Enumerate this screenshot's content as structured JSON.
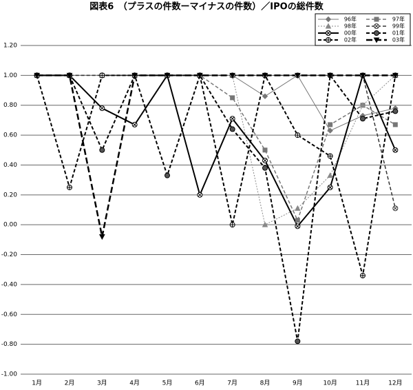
{
  "chart_data": {
    "type": "line",
    "title": "図表6　（プラスの件数ーマイナスの件数）／IPOの総件数",
    "categories": [
      "1月",
      "2月",
      "3月",
      "4月",
      "5月",
      "6月",
      "7月",
      "8月",
      "9月",
      "10月",
      "11月",
      "12月"
    ],
    "series": [
      {
        "name": "96年",
        "color": "#777777",
        "width": 1,
        "dash": "solid",
        "marker": "diamond",
        "values": [
          1,
          1,
          1,
          1,
          1,
          1,
          1,
          0.86,
          1,
          0.63,
          0.73,
          0.78
        ]
      },
      {
        "name": "97年",
        "color": "#777777",
        "width": 1.5,
        "dash": "dashed",
        "marker": "square",
        "values": [
          1,
          1,
          1,
          1,
          1,
          1,
          0.85,
          0.5,
          0.03,
          0.67,
          0.8,
          0.67
        ]
      },
      {
        "name": "98年",
        "color": "#888888",
        "width": 1,
        "dash": "dotted",
        "marker": "triangle",
        "values": [
          1,
          1,
          1,
          1,
          1,
          1,
          1,
          0,
          0.11,
          0.33,
          0.8,
          1
        ]
      },
      {
        "name": "99年",
        "color": "#333333",
        "width": 1.5,
        "dash": "dashed",
        "marker": "circle-x",
        "values": [
          1,
          1,
          1,
          1,
          1,
          1,
          1,
          1,
          1,
          1,
          1,
          0.11
        ]
      },
      {
        "name": "00年",
        "color": "#000000",
        "width": 2,
        "dash": "solid",
        "marker": "circle-x",
        "values": [
          1,
          1,
          0.78,
          0.67,
          1,
          0.2,
          0.71,
          0.43,
          -0.01,
          0.25,
          1,
          0.5
        ]
      },
      {
        "name": "01年",
        "color": "#000000",
        "width": 2,
        "dash": "dashed",
        "marker": "dot",
        "values": [
          1,
          1,
          0.5,
          1,
          0.33,
          1,
          0.64,
          0.38,
          -0.78,
          1,
          0.71,
          0.76
        ]
      },
      {
        "name": "02年",
        "color": "#000000",
        "width": 2,
        "dash": "dashed",
        "marker": "circle-plus",
        "values": [
          1,
          0.25,
          1,
          1,
          1,
          1,
          0,
          1,
          0.6,
          0.46,
          -0.34,
          1
        ]
      },
      {
        "name": "03年",
        "color": "#000000",
        "width": 2.5,
        "dash": "long-dashed",
        "marker": "triangle-down",
        "values": [
          1,
          1,
          -0.08,
          1,
          1,
          1,
          1,
          1,
          1,
          1,
          1,
          1
        ]
      }
    ],
    "ylim": [
      -1,
      1.2
    ],
    "yticks": [
      {
        "value": -1,
        "label": "-1.00"
      },
      {
        "value": -0.8,
        "label": "-0.80"
      },
      {
        "value": -0.6,
        "label": "-0.60"
      },
      {
        "value": -0.4,
        "label": "-0.40"
      },
      {
        "value": -0.2,
        "label": "-0.20"
      },
      {
        "value": 0,
        "label": "0.00"
      },
      {
        "value": 0.2,
        "label": "0.20"
      },
      {
        "value": 0.4,
        "label": "0.40"
      },
      {
        "value": 0.6,
        "label": "0.60"
      },
      {
        "value": 0.8,
        "label": "0.80"
      },
      {
        "value": 1,
        "label": "1.00"
      },
      {
        "value": 1.2,
        "label": "1.20"
      }
    ],
    "grid": true,
    "legend": "top-right"
  }
}
